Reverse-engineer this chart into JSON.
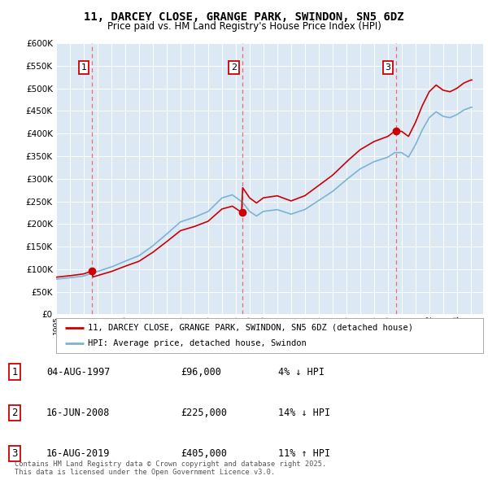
{
  "title": "11, DARCEY CLOSE, GRANGE PARK, SWINDON, SN5 6DZ",
  "subtitle": "Price paid vs. HM Land Registry's House Price Index (HPI)",
  "legend_line1": "11, DARCEY CLOSE, GRANGE PARK, SWINDON, SN5 6DZ (detached house)",
  "legend_line2": "HPI: Average price, detached house, Swindon",
  "footnote": "Contains HM Land Registry data © Crown copyright and database right 2025.\nThis data is licensed under the Open Government Licence v3.0.",
  "sales": [
    {
      "label": "1",
      "date": "04-AUG-1997",
      "date_num": 1997.6,
      "price": 96000,
      "pct": "4%",
      "dir": "↓"
    },
    {
      "label": "2",
      "date": "16-JUN-2008",
      "date_num": 2008.46,
      "price": 225000,
      "pct": "14%",
      "dir": "↓"
    },
    {
      "label": "3",
      "date": "16-AUG-2019",
      "date_num": 2019.62,
      "price": 405000,
      "pct": "11%",
      "dir": "↑"
    }
  ],
  "hpi_line_color": "#7ab3d4",
  "sale_line_color": "#cc0000",
  "sale_dot_color": "#cc0000",
  "vline_color": "#e87070",
  "plot_bg_color": "#dce9f5",
  "ylim_max": 600000,
  "ytick_step": 50000,
  "xmin": 1995.0,
  "xmax": 2025.9
}
